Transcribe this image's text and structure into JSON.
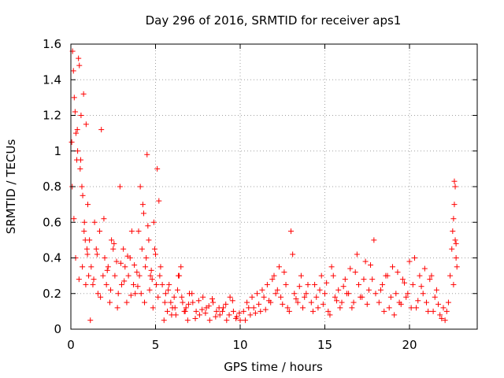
{
  "chart_data": {
    "type": "scatter",
    "title": "Day 296 of 2016, SRMTID for receiver aps1",
    "xlabel": "GPS time / hours",
    "ylabel": "SRMTID / TECUs",
    "xlim": [
      0,
      24
    ],
    "ylim": [
      0,
      1.6
    ],
    "xticks": [
      0,
      5,
      10,
      15,
      20
    ],
    "xtick_labels": [
      "0",
      "5",
      "10",
      "15",
      "20"
    ],
    "yticks": [
      0,
      0.2,
      0.4,
      0.6,
      0.8,
      1.0,
      1.2,
      1.4,
      1.6
    ],
    "ytick_labels": [
      "0",
      "0.2",
      "0.4",
      "0.6",
      "0.8",
      "1",
      "1.2",
      "1.4",
      "1.6"
    ],
    "grid": true,
    "marker": "+",
    "color": "#ff0000",
    "series": [
      {
        "name": "SRMTID",
        "x": [
          0.05,
          0.1,
          0.15,
          0.2,
          0.25,
          0.3,
          0.35,
          0.4,
          0.45,
          0.5,
          0.55,
          0.6,
          0.65,
          0.7,
          0.75,
          0.8,
          0.85,
          0.9,
          0.95,
          1.0,
          0.08,
          0.18,
          0.28,
          0.38,
          0.48,
          0.58,
          0.68,
          0.78,
          0.88,
          0.98,
          1.05,
          1.1,
          1.2,
          1.3,
          1.4,
          1.5,
          1.6,
          1.7,
          1.8,
          1.9,
          2.0,
          2.1,
          2.2,
          2.3,
          2.4,
          2.5,
          2.6,
          2.7,
          2.8,
          2.9,
          3.0,
          3.1,
          3.2,
          3.3,
          3.4,
          3.5,
          3.6,
          3.7,
          3.8,
          3.9,
          1.15,
          1.35,
          1.55,
          1.75,
          1.95,
          2.15,
          2.35,
          2.55,
          2.75,
          2.95,
          3.15,
          3.35,
          3.55,
          3.75,
          3.95,
          4.0,
          4.1,
          4.2,
          4.3,
          4.4,
          4.5,
          4.6,
          4.7,
          4.8,
          4.9,
          5.0,
          5.1,
          5.2,
          5.3,
          5.4,
          4.05,
          4.15,
          4.25,
          4.35,
          4.45,
          4.55,
          4.65,
          4.75,
          4.85,
          4.95,
          5.05,
          5.15,
          5.25,
          5.5,
          5.6,
          5.7,
          5.8,
          5.9,
          6.0,
          6.1,
          6.2,
          6.3,
          6.4,
          6.5,
          6.6,
          6.7,
          6.8,
          6.9,
          7.0,
          7.2,
          7.4,
          7.6,
          7.8,
          8.0,
          8.2,
          8.4,
          8.6,
          8.8,
          9.0,
          9.2,
          9.4,
          9.6,
          9.8,
          10.0,
          5.55,
          5.75,
          5.95,
          6.15,
          6.35,
          6.55,
          6.75,
          6.95,
          7.15,
          7.35,
          7.55,
          7.75,
          7.95,
          8.15,
          8.35,
          8.55,
          8.75,
          8.95,
          9.15,
          9.35,
          9.55,
          9.75,
          9.95,
          10.2,
          10.4,
          10.6,
          10.8,
          11.0,
          11.2,
          11.4,
          11.6,
          11.8,
          12.0,
          12.2,
          12.4,
          12.6,
          12.8,
          13.0,
          13.2,
          13.4,
          13.6,
          13.8,
          14.0,
          10.3,
          10.5,
          10.7,
          10.9,
          11.1,
          11.3,
          11.5,
          11.7,
          11.9,
          12.1,
          12.3,
          12.5,
          12.7,
          12.9,
          13.1,
          13.3,
          13.5,
          13.7,
          13.9,
          14.2,
          14.4,
          14.6,
          14.8,
          15.0,
          15.2,
          15.4,
          15.6,
          15.8,
          16.0,
          16.2,
          16.4,
          16.6,
          16.8,
          17.0,
          17.2,
          17.4,
          17.6,
          17.8,
          18.0,
          14.3,
          14.5,
          14.7,
          14.9,
          15.1,
          15.3,
          15.5,
          15.7,
          15.9,
          16.1,
          16.3,
          16.5,
          16.7,
          16.9,
          17.1,
          17.3,
          17.5,
          17.7,
          17.9,
          18.2,
          18.4,
          18.6,
          18.8,
          19.0,
          19.2,
          19.4,
          19.6,
          19.8,
          20.0,
          20.2,
          20.4,
          20.6,
          20.8,
          21.0,
          21.2,
          21.4,
          21.6,
          21.8,
          22.0,
          18.3,
          18.5,
          18.7,
          18.9,
          19.1,
          19.3,
          19.5,
          19.7,
          19.9,
          20.1,
          20.3,
          20.5,
          20.7,
          20.9,
          21.1,
          21.3,
          21.5,
          21.7,
          21.9,
          22.1,
          22.2,
          22.3,
          22.4,
          22.5,
          22.55,
          22.6,
          22.65,
          22.7,
          22.75,
          22.8,
          22.6,
          22.7,
          22.65,
          22.75
        ],
        "y": [
          1.05,
          1.56,
          1.45,
          1.3,
          1.22,
          1.1,
          0.95,
          1.0,
          1.52,
          1.48,
          0.9,
          1.2,
          0.8,
          0.75,
          1.32,
          0.6,
          0.5,
          1.15,
          0.45,
          0.7,
          0.8,
          0.62,
          0.4,
          1.12,
          0.28,
          0.95,
          0.35,
          0.55,
          0.25,
          0.42,
          0.3,
          0.5,
          0.35,
          0.25,
          0.6,
          0.45,
          0.2,
          0.55,
          1.12,
          0.3,
          0.4,
          0.25,
          0.35,
          0.15,
          0.5,
          0.45,
          0.3,
          0.38,
          0.2,
          0.8,
          0.25,
          0.45,
          0.35,
          0.15,
          0.3,
          0.4,
          0.55,
          0.25,
          0.2,
          0.32,
          0.05,
          0.28,
          0.42,
          0.18,
          0.62,
          0.33,
          0.22,
          0.48,
          0.12,
          0.37,
          0.27,
          0.41,
          0.19,
          0.36,
          0.24,
          0.55,
          0.8,
          0.45,
          0.65,
          0.35,
          0.98,
          0.5,
          0.3,
          0.28,
          0.6,
          0.42,
          0.9,
          0.72,
          0.35,
          0.25,
          0.3,
          0.2,
          0.7,
          0.15,
          0.4,
          0.58,
          0.22,
          0.33,
          0.12,
          0.45,
          0.25,
          0.18,
          0.3,
          0.05,
          0.2,
          0.1,
          0.25,
          0.15,
          0.12,
          0.18,
          0.08,
          0.22,
          0.3,
          0.35,
          0.15,
          0.1,
          0.12,
          0.05,
          0.2,
          0.15,
          0.1,
          0.08,
          0.18,
          0.12,
          0.05,
          0.15,
          0.1,
          0.08,
          0.12,
          0.05,
          0.18,
          0.1,
          0.07,
          0.05,
          0.15,
          0.22,
          0.08,
          0.12,
          0.3,
          0.18,
          0.1,
          0.14,
          0.2,
          0.06,
          0.16,
          0.11,
          0.09,
          0.13,
          0.17,
          0.07,
          0.12,
          0.1,
          0.14,
          0.08,
          0.16,
          0.06,
          0.09,
          0.1,
          0.15,
          0.08,
          0.12,
          0.2,
          0.1,
          0.18,
          0.25,
          0.15,
          0.3,
          0.22,
          0.18,
          0.32,
          0.12,
          0.55,
          0.2,
          0.15,
          0.3,
          0.18,
          0.25,
          0.05,
          0.12,
          0.18,
          0.09,
          0.14,
          0.22,
          0.11,
          0.16,
          0.28,
          0.2,
          0.35,
          0.14,
          0.25,
          0.1,
          0.42,
          0.17,
          0.24,
          0.12,
          0.2,
          0.15,
          0.25,
          0.12,
          0.3,
          0.2,
          0.1,
          0.35,
          0.18,
          0.22,
          0.15,
          0.28,
          0.2,
          0.12,
          0.32,
          0.25,
          0.18,
          0.38,
          0.22,
          0.28,
          0.2,
          0.1,
          0.18,
          0.22,
          0.14,
          0.26,
          0.08,
          0.3,
          0.16,
          0.12,
          0.24,
          0.2,
          0.34,
          0.15,
          0.42,
          0.18,
          0.28,
          0.14,
          0.36,
          0.5,
          0.15,
          0.25,
          0.3,
          0.12,
          0.35,
          0.2,
          0.15,
          0.28,
          0.18,
          0.38,
          0.25,
          0.12,
          0.3,
          0.2,
          0.15,
          0.28,
          0.1,
          0.22,
          0.08,
          0.12,
          0.22,
          0.1,
          0.3,
          0.18,
          0.08,
          0.32,
          0.14,
          0.26,
          0.2,
          0.12,
          0.4,
          0.16,
          0.24,
          0.34,
          0.1,
          0.3,
          0.18,
          0.14,
          0.06,
          0.05,
          0.1,
          0.15,
          0.3,
          0.45,
          0.55,
          0.62,
          0.7,
          0.8,
          0.4,
          0.35,
          0.25,
          0.5,
          0.83,
          0.48
        ]
      }
    ]
  }
}
